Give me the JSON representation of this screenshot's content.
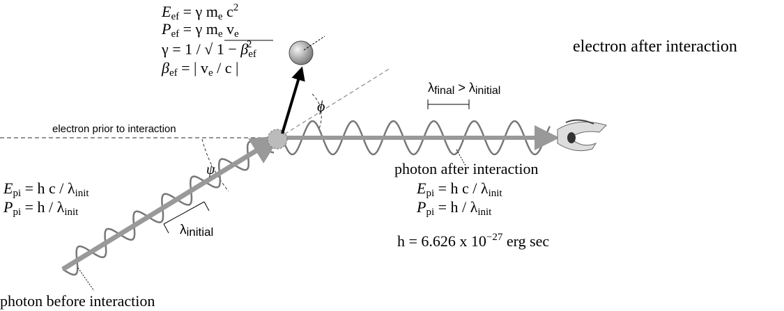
{
  "electron_equations": [
    [
      "E",
      "ef",
      " = γ m",
      "e",
      " c",
      "2"
    ],
    [
      "P",
      "ef",
      " = γ m",
      "e",
      " v",
      "e"
    ],
    [
      "γ = 1 / √",
      " 1 − ",
      "β",
      "ef",
      "2"
    ],
    [
      "β",
      "ef",
      " = | v",
      "e",
      " / c |"
    ]
  ],
  "electron_after": "electron after interaction",
  "wavelength_final": [
    "λ",
    "final",
    " > ",
    "λ",
    "initial"
  ],
  "electron_prior": "electron prior to interaction",
  "angle_phi": "ϕ",
  "angle_psi": "ψ",
  "photon_before_equations": [
    [
      "E",
      "pi",
      " = h c / λ",
      "init"
    ],
    [
      "P",
      "pi",
      " = h / λ",
      "init"
    ]
  ],
  "wavelength_initial": [
    "λ",
    "initial"
  ],
  "photon_after": "photon after interaction",
  "photon_after_equations": [
    [
      "E",
      "pi",
      " = h c / λ",
      "init"
    ],
    [
      "P",
      "pi",
      " = h / λ",
      "init"
    ]
  ],
  "planck": [
    "h = 6.626 x 10",
    "−27",
    " erg sec"
  ],
  "photon_before": "photon before interaction"
}
